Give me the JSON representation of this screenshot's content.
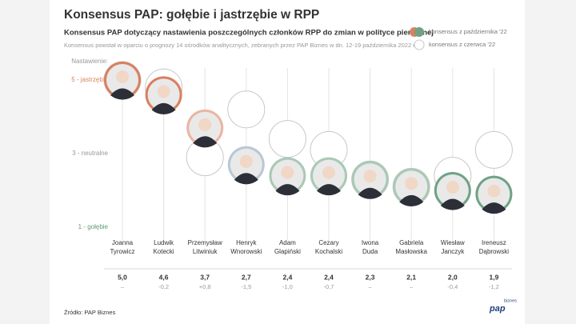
{
  "chart_data": {
    "type": "dot",
    "title": "Konsensus PAP: gołębie i jastrzębie w RPP",
    "subtitle": "Konsensus PAP dotyczący nastawienia poszczególnych członków RPP do zmian w polityce pieniężnej",
    "note": "Konsensus powstał w oparciu o prognozy 14 ośrodków analitycznych, zebranych przez PAP Biznes w dn. 12-19 października 2022 r.",
    "y_label": "Nastawienie:",
    "categories": [
      [
        "Joanna",
        "Tyrowicz"
      ],
      [
        "Ludwik",
        "Kotecki"
      ],
      [
        "Przemysław",
        "Litwiniuk"
      ],
      [
        "Henryk",
        "Wnorowski"
      ],
      [
        "Adam",
        "Glapiński"
      ],
      [
        "Cezary",
        "Kochalski"
      ],
      [
        "Iwona",
        "Duda"
      ],
      [
        "Gabriela",
        "Masłowska"
      ],
      [
        "Wiesław",
        "Janczyk"
      ],
      [
        "Ireneusz",
        "Dąbrowski"
      ]
    ],
    "series": [
      {
        "name": "konsensus z czerwca '22",
        "color": "#ffffff",
        "stroke": "#c8c8c8",
        "values": [
          5.0,
          4.8,
          2.9,
          4.2,
          3.4,
          3.1,
          2.3,
          2.1,
          2.4,
          3.1
        ]
      },
      {
        "name": "konsensus z października '22",
        "color": "#d9805f",
        "colors": [
          "#d9805f",
          "#d9805f",
          "#ebb5a2",
          "#b9c8d6",
          "#a9c9b5",
          "#a9c9b5",
          "#a9c9b5",
          "#a9c9b5",
          "#6fa285",
          "#6fa285"
        ],
        "values": [
          5.0,
          4.6,
          3.7,
          2.7,
          2.4,
          2.4,
          2.3,
          2.1,
          2.0,
          1.9
        ],
        "value_labels": [
          "5,0",
          "4,6",
          "3,7",
          "2,7",
          "2,4",
          "2,4",
          "2,3",
          "2,1",
          "2,0",
          "1,9"
        ]
      }
    ],
    "changes": [
      "–",
      "-0,2",
      "+0,8",
      "-1,5",
      "-1,0",
      "-0,7",
      "–",
      "–",
      "-0,4",
      "-1,2"
    ],
    "ylim": [
      1,
      5
    ],
    "yticks": [
      {
        "value": 5,
        "label": "5 - jastrzębie"
      },
      {
        "value": 3,
        "label": "3 - neutralne"
      },
      {
        "value": 1,
        "label": "1 - gołębie"
      }
    ],
    "ytick_colors": [
      "#d9805f",
      "#999999",
      "#5f9a7a"
    ],
    "legend": "top-right",
    "source": "Źródło: PAP Biznes",
    "logo": [
      "pap",
      "biznes"
    ]
  }
}
